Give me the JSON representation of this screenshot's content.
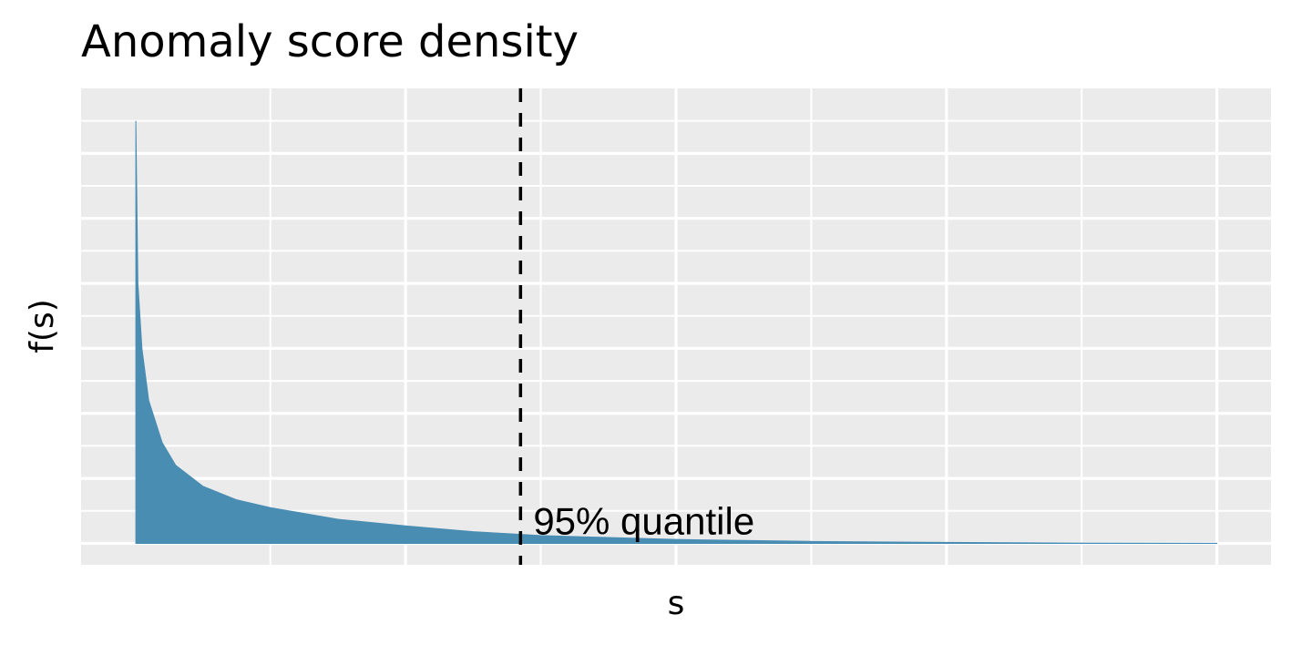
{
  "chart_data": {
    "type": "area",
    "title": "Anomaly score density",
    "xlabel": "s",
    "ylabel": "f(s)",
    "xlim": [
      -0.04,
      0.84
    ],
    "ylim": [
      -0.033,
      0.7
    ],
    "x_gridlines": [
      0.1,
      0.2,
      0.3,
      0.4,
      0.5,
      0.6,
      0.7,
      0.8
    ],
    "y_gridlines": [
      0.05,
      0.1,
      0.15,
      0.2,
      0.25,
      0.3,
      0.35,
      0.4,
      0.45,
      0.5,
      0.55,
      0.6,
      0.65
    ],
    "tick_labels_shown": false,
    "grid": true,
    "series": [
      {
        "fill_color": "#4a8db3",
        "x": [
          0.0005,
          0.002,
          0.005,
          0.01,
          0.02,
          0.03,
          0.05,
          0.075,
          0.1,
          0.15,
          0.2,
          0.25,
          0.3,
          0.35,
          0.4,
          0.5,
          0.6,
          0.7,
          0.8
        ],
        "y": [
          0.65,
          0.4,
          0.3,
          0.22,
          0.155,
          0.12,
          0.088,
          0.067,
          0.055,
          0.037,
          0.027,
          0.018,
          0.012,
          0.009,
          0.006,
          0.003,
          0.0015,
          0.0005,
          0.0001
        ]
      }
    ],
    "annotations": [
      {
        "type": "vline",
        "x": 0.285,
        "style": "dashed",
        "color": "#000000",
        "label": "95% quantile"
      }
    ]
  }
}
